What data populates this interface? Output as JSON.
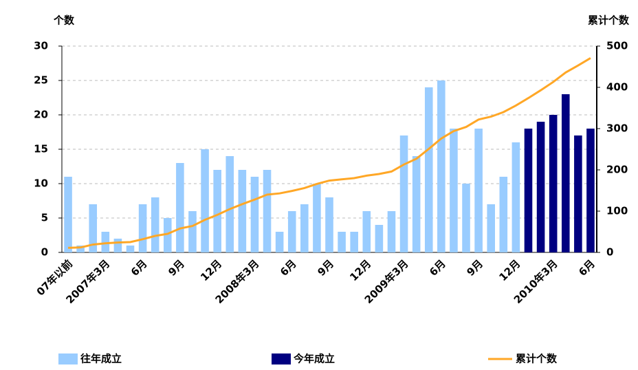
{
  "chart_data": {
    "type": "bar_line",
    "y_label": "个数",
    "y2_label": "累计个数",
    "categories": [
      "07年以前",
      null,
      null,
      "2007年3月",
      null,
      null,
      "6月",
      null,
      null,
      "9月",
      null,
      null,
      "12月",
      null,
      null,
      "2008年3月",
      null,
      null,
      "6月",
      null,
      null,
      "9月",
      null,
      null,
      "12月",
      null,
      null,
      "2009年3月",
      null,
      null,
      "6月",
      null,
      null,
      "9月",
      null,
      null,
      "12月",
      null,
      null,
      "2010年3月",
      null,
      null,
      "6月"
    ],
    "series": [
      {
        "name": "往年成立",
        "type": "bar",
        "color": "#99ccff",
        "values": [
          11,
          1,
          7,
          3,
          2,
          1,
          7,
          8,
          5,
          13,
          6,
          15,
          12,
          14,
          12,
          11,
          12,
          3,
          6,
          7,
          10,
          8,
          3,
          3,
          6,
          4,
          6,
          17,
          14,
          24,
          25,
          18,
          10,
          18,
          7,
          11,
          16,
          null,
          null,
          null,
          null,
          null,
          null
        ]
      },
      {
        "name": "今年成立",
        "type": "bar",
        "color": "#000080",
        "values": [
          null,
          null,
          null,
          null,
          null,
          null,
          null,
          null,
          null,
          null,
          null,
          null,
          null,
          null,
          null,
          null,
          null,
          null,
          null,
          null,
          null,
          null,
          null,
          null,
          null,
          null,
          null,
          null,
          null,
          null,
          null,
          null,
          null,
          null,
          null,
          null,
          null,
          18,
          19,
          20,
          23,
          17,
          18
        ]
      },
      {
        "name": "累计个数",
        "type": "line",
        "axis": "y2",
        "color": "#ffa726",
        "values": [
          11,
          12,
          19,
          22,
          24,
          25,
          32,
          40,
          45,
          58,
          64,
          79,
          91,
          105,
          117,
          128,
          140,
          143,
          149,
          156,
          166,
          174,
          177,
          180,
          186,
          190,
          196,
          213,
          227,
          251,
          276,
          294,
          304,
          322,
          329,
          340,
          356,
          374,
          393,
          413,
          436,
          453,
          471
        ]
      }
    ],
    "ylim": [
      0,
      30
    ],
    "yticks": [
      0,
      5,
      10,
      15,
      20,
      25,
      30
    ],
    "y2lim": [
      0,
      500
    ],
    "y2ticks": [
      0,
      100,
      200,
      300,
      400,
      500
    ],
    "grid": true
  }
}
